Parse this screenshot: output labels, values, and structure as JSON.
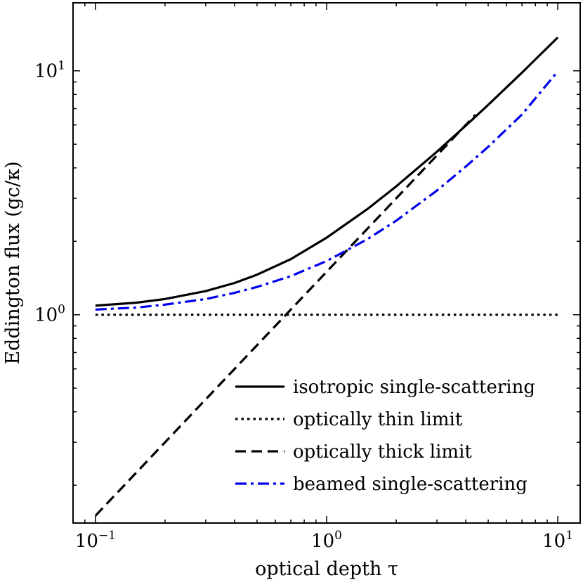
{
  "chart_data": {
    "type": "line",
    "xscale": "log",
    "yscale": "log",
    "xlabel": "optical depth τ",
    "ylabel": "Eddington flux (gc/κ)",
    "xlim": [
      0.08,
      12.5
    ],
    "ylim": [
      0.14,
      19
    ],
    "xticks": [
      {
        "value": 0.1,
        "base": "10",
        "exp": "−1"
      },
      {
        "value": 1,
        "base": "10",
        "exp": "0"
      },
      {
        "value": 10,
        "base": "10",
        "exp": "1"
      }
    ],
    "yticks": [
      {
        "value": 1,
        "base": "10",
        "exp": "0"
      },
      {
        "value": 10,
        "base": "10",
        "exp": "1"
      }
    ],
    "legend_position": "lower-right",
    "series": [
      {
        "name": "isotropic single-scattering",
        "color": "#000000",
        "dash": "solid",
        "x": [
          0.1,
          0.15,
          0.2,
          0.3,
          0.4,
          0.5,
          0.7,
          1.0,
          1.5,
          2.0,
          3.0,
          4.0,
          5.0,
          7.0,
          10.0
        ],
        "y": [
          1.09,
          1.12,
          1.16,
          1.25,
          1.35,
          1.46,
          1.69,
          2.07,
          2.71,
          3.36,
          4.66,
          5.96,
          7.25,
          9.83,
          13.7
        ]
      },
      {
        "name": "optically thin limit",
        "color": "#000000",
        "dash": "dotted",
        "x": [
          0.1,
          10.0
        ],
        "y": [
          1.0,
          1.0
        ]
      },
      {
        "name": "optically thick limit",
        "color": "#000000",
        "dash": "dashed",
        "x": [
          0.1,
          4.4
        ],
        "y": [
          0.15,
          6.6
        ]
      },
      {
        "name": "beamed single-scattering",
        "color": "#0000ee",
        "dash": "dashdot",
        "x": [
          0.1,
          0.15,
          0.2,
          0.3,
          0.4,
          0.5,
          0.7,
          1.0,
          1.5,
          2.0,
          3.0,
          4.0,
          5.0,
          7.0,
          10.0
        ],
        "y": [
          1.05,
          1.07,
          1.1,
          1.16,
          1.23,
          1.3,
          1.44,
          1.66,
          2.04,
          2.43,
          3.23,
          4.05,
          4.88,
          6.62,
          9.95
        ]
      }
    ]
  }
}
